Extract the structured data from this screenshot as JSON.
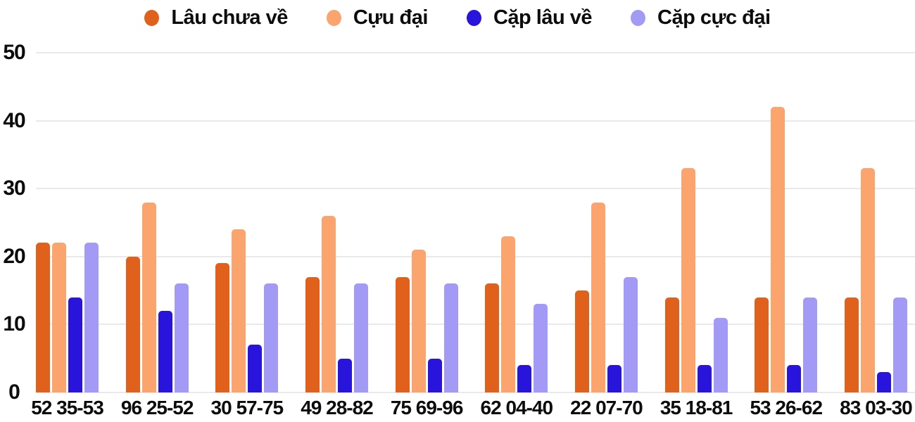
{
  "colors": {
    "background": "#ffffff",
    "grid": "#e9e9e9",
    "text": "#0c0c0c",
    "series_dark_orange": "#e0611b",
    "series_light_orange": "#fca46e",
    "series_blue": "#2914dc",
    "series_purple": "#a29af4"
  },
  "chart_data": {
    "type": "bar",
    "title": "",
    "xlabel": "",
    "ylabel": "",
    "ylim": [
      0,
      50
    ],
    "yticks": [
      0,
      10,
      20,
      30,
      40,
      50
    ],
    "grid": true,
    "legend_position": "top",
    "categories": [
      "52 35-53",
      "96 25-52",
      "30 57-75",
      "49 28-82",
      "75 69-96",
      "62 04-40",
      "22 07-70",
      "35 18-81",
      "53 26-62",
      "83 03-30"
    ],
    "series": [
      {
        "name": "Lâu chưa về",
        "color": "#e0611b",
        "values": [
          22,
          20,
          19,
          17,
          17,
          16,
          15,
          14,
          14,
          14
        ]
      },
      {
        "name": "Cựu đại",
        "color": "#fca46e",
        "values": [
          22,
          28,
          24,
          26,
          21,
          23,
          28,
          33,
          42,
          33
        ]
      },
      {
        "name": "Cặp lâu về",
        "color": "#2914dc",
        "values": [
          14,
          12,
          7,
          5,
          5,
          4,
          4,
          4,
          4,
          3
        ]
      },
      {
        "name": "Cặp cực đại",
        "color": "#a29af4",
        "values": [
          22,
          16,
          16,
          16,
          16,
          13,
          17,
          11,
          14,
          14
        ]
      }
    ]
  }
}
